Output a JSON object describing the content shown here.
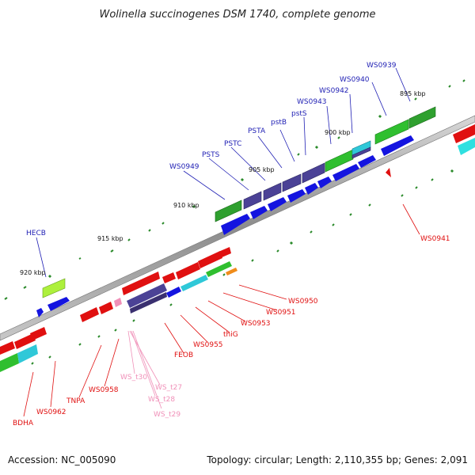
{
  "header": {
    "title": "Wolinella succinogenes DSM 1740, complete genome"
  },
  "footer": {
    "accession": "Accession: NC_005090",
    "summary": "Topology: circular; Length: 2,110,355 bp; Genes: 2,091"
  },
  "colors": {
    "forward_label": "#1f1fb4",
    "reverse_label": "#e01010",
    "trna_label": "#f090b8",
    "backbone": "#8c8c8c",
    "tick": "#2a8a2a"
  },
  "diagram": {
    "kbp_markers": [
      "895 kbp",
      "900 kbp",
      "905 kbp",
      "910 kbp",
      "915 kbp",
      "920 kbp"
    ],
    "forward_genes": [
      "WS0939",
      "WS0940",
      "WS0942",
      "WS0943",
      "pstS",
      "pstB",
      "PSTA",
      "PSTC",
      "PSTS",
      "WS0949",
      "HECB"
    ],
    "reverse_genes": [
      "WS0941",
      "WS0950",
      "WS0951",
      "WS0953",
      "thiG",
      "WS0955",
      "FEOB",
      "WS0958",
      "TNPA",
      "WS0962",
      "BDHA"
    ],
    "trna_genes": [
      "WS_t30",
      "WS_t27",
      "WS_t28",
      "WS_t29"
    ]
  }
}
